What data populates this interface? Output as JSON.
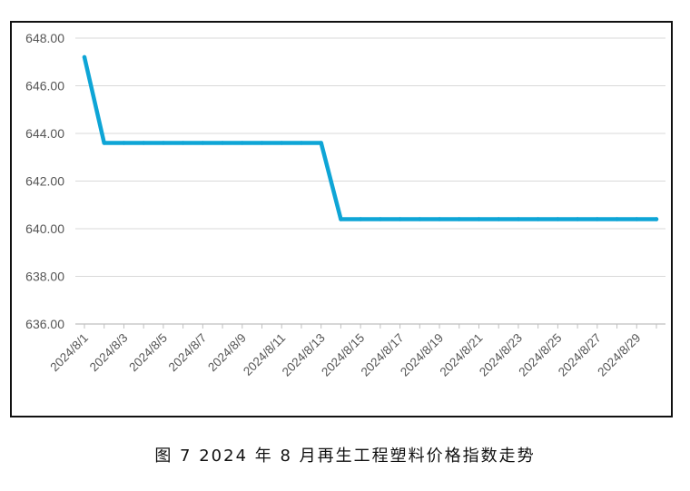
{
  "caption": "图 7  2024 年 8 月再生工程塑料价格指数走势",
  "chart_data": {
    "type": "line",
    "title": "",
    "xlabel": "",
    "ylabel": "",
    "ylim": [
      636,
      648
    ],
    "yticks": [
      "636.00",
      "638.00",
      "640.00",
      "642.00",
      "644.00",
      "646.00",
      "648.00"
    ],
    "ytick_values": [
      636,
      638,
      640,
      642,
      644,
      646,
      648
    ],
    "grid": true,
    "legend": "none",
    "line_color": "#0ea5d6",
    "grid_color": "#d9d9d9",
    "axis_color": "#bfbfbf",
    "x": [
      "2024/8/1",
      "2024/8/2",
      "2024/8/3",
      "2024/8/4",
      "2024/8/5",
      "2024/8/6",
      "2024/8/7",
      "2024/8/8",
      "2024/8/9",
      "2024/8/10",
      "2024/8/11",
      "2024/8/12",
      "2024/8/13",
      "2024/8/14",
      "2024/8/15",
      "2024/8/16",
      "2024/8/17",
      "2024/8/18",
      "2024/8/19",
      "2024/8/20",
      "2024/8/21",
      "2024/8/22",
      "2024/8/23",
      "2024/8/24",
      "2024/8/25",
      "2024/8/26",
      "2024/8/27",
      "2024/8/28",
      "2024/8/29",
      "2024/8/30"
    ],
    "xtick_labels": [
      "2024/8/1",
      "2024/8/3",
      "2024/8/5",
      "2024/8/7",
      "2024/8/9",
      "2024/8/11",
      "2024/8/13",
      "2024/8/15",
      "2024/8/17",
      "2024/8/19",
      "2024/8/21",
      "2024/8/23",
      "2024/8/25",
      "2024/8/27",
      "2024/8/29"
    ],
    "series": [
      {
        "values": [
          647.2,
          643.6,
          643.6,
          643.6,
          643.6,
          643.6,
          643.6,
          643.6,
          643.6,
          643.6,
          643.6,
          643.6,
          643.6,
          640.4,
          640.4,
          640.4,
          640.4,
          640.4,
          640.4,
          640.4,
          640.4,
          640.4,
          640.4,
          640.4,
          640.4,
          640.4,
          640.4,
          640.4,
          640.4,
          640.4
        ]
      }
    ]
  }
}
